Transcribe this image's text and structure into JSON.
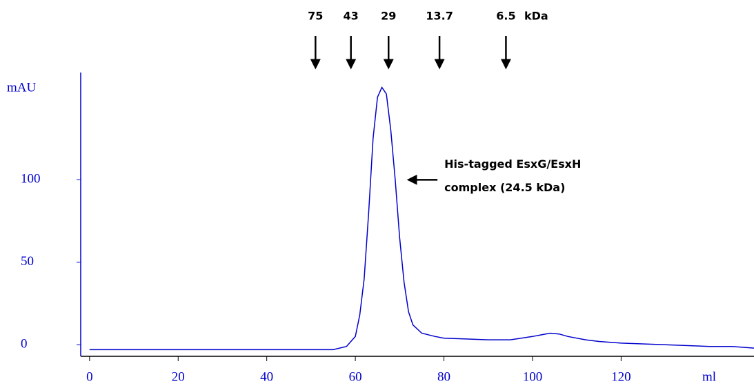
{
  "chart_data": {
    "type": "line",
    "y_label": "mAU",
    "x_label": "ml",
    "series": [
      {
        "color": "#0000cc",
        "x": [
          0,
          10,
          20,
          30,
          40,
          50,
          55,
          58,
          60,
          61,
          62,
          63,
          64,
          65,
          66,
          67,
          68,
          69,
          70,
          71,
          72,
          73,
          75,
          78,
          80,
          85,
          90,
          95,
          100,
          102,
          104,
          106,
          108,
          112,
          115,
          120,
          130,
          140,
          145,
          150
        ],
        "values": [
          -3,
          -3,
          -3,
          -3,
          -3,
          -3,
          -3,
          -1,
          5,
          18,
          40,
          80,
          125,
          150,
          156,
          152,
          130,
          100,
          65,
          38,
          20,
          12,
          7,
          5,
          4,
          3.5,
          3,
          3,
          5,
          6,
          7,
          6.5,
          5,
          3,
          2,
          1,
          0,
          -1,
          -1,
          -2
        ]
      }
    ],
    "xlim": [
      -2,
      150
    ],
    "xticks": [
      0,
      20,
      40,
      60,
      80,
      100,
      120
    ],
    "ylim": [
      -7,
      165
    ],
    "yticks": [
      0,
      50,
      100
    ],
    "markers_unit": "kDa",
    "markers": [
      {
        "label": "75",
        "x": 51
      },
      {
        "label": "43",
        "x": 59
      },
      {
        "label": "29",
        "x": 67.5
      },
      {
        "label": "13.7",
        "x": 79
      },
      {
        "label": "6.5",
        "x": 94
      }
    ],
    "annotation": {
      "lines": [
        "His-tagged EsxG/EsxH",
        "complex  (24.5 kDa)"
      ],
      "x": 72,
      "y": 100
    }
  }
}
